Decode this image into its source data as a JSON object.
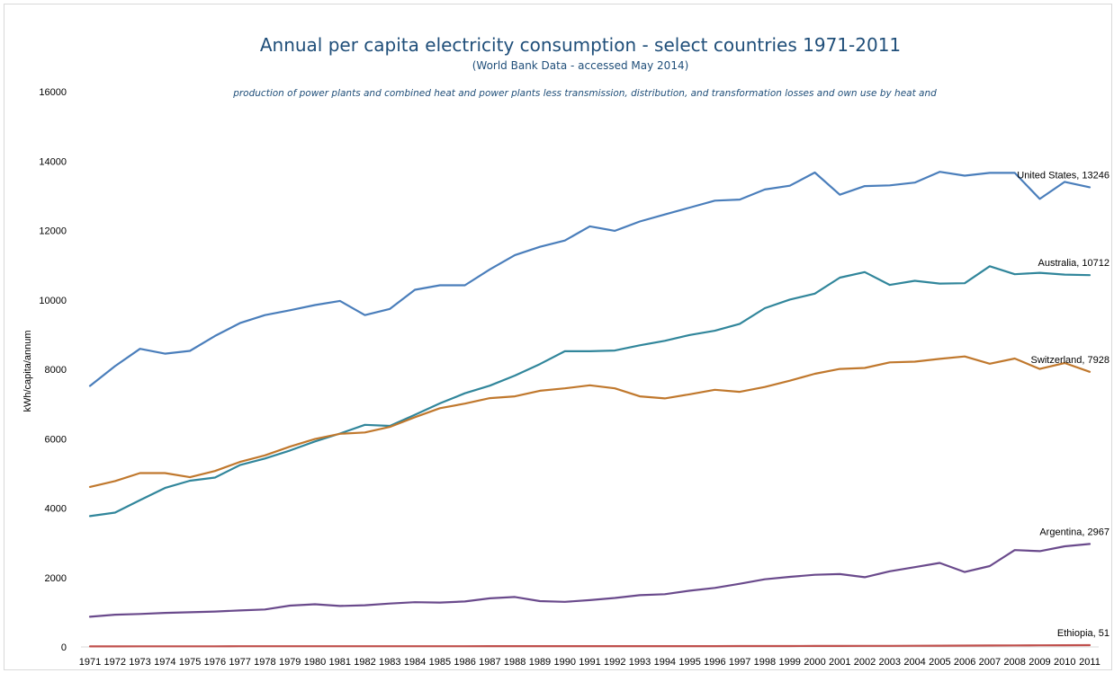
{
  "chart_data": {
    "type": "line",
    "title": "Annual per capita electricity consumption - select countries 1971-2011",
    "subtitle": "(World Bank Data - accessed May 2014)",
    "note": "production of power plants and combined heat and power plants less transmission, distribution, and transformation losses and own use by heat and",
    "xlabel": "",
    "ylabel": "kWh/capita/annum",
    "ylim": [
      0,
      16000
    ],
    "yticks": [
      "0",
      "2000",
      "4000",
      "6000",
      "8000",
      "10000",
      "12000",
      "14000",
      "16000"
    ],
    "categories": [
      "1971",
      "1972",
      "1973",
      "1974",
      "1975",
      "1976",
      "1977",
      "1978",
      "1979",
      "1980",
      "1981",
      "1982",
      "1983",
      "1984",
      "1985",
      "1986",
      "1987",
      "1988",
      "1989",
      "1990",
      "1991",
      "1992",
      "1993",
      "1994",
      "1995",
      "1996",
      "1997",
      "1998",
      "1999",
      "2000",
      "2001",
      "2002",
      "2003",
      "2004",
      "2005",
      "2006",
      "2007",
      "2008",
      "2009",
      "2010",
      "2011"
    ],
    "grid": false,
    "legend": "end-of-line labels",
    "series": [
      {
        "name": "United States",
        "end_label": "United States, 13246",
        "color": "#4a7ebb",
        "values": [
          7520,
          8090,
          8590,
          8450,
          8530,
          8960,
          9330,
          9560,
          9700,
          9850,
          9970,
          9560,
          9740,
          10290,
          10420,
          10420,
          10880,
          11290,
          11530,
          11710,
          12120,
          11990,
          12260,
          12460,
          12660,
          12860,
          12890,
          13180,
          13290,
          13670,
          13030,
          13280,
          13300,
          13380,
          13690,
          13580,
          13660,
          13660,
          12910,
          13400,
          13246
        ]
      },
      {
        "name": "Australia",
        "end_label": "Australia, 10712",
        "color": "#31869b",
        "values": [
          3770,
          3870,
          4230,
          4580,
          4790,
          4880,
          5240,
          5430,
          5660,
          5920,
          6150,
          6400,
          6370,
          6690,
          7020,
          7310,
          7530,
          7820,
          8150,
          8520,
          8520,
          8540,
          8690,
          8820,
          8990,
          9110,
          9310,
          9760,
          10010,
          10180,
          10640,
          10800,
          10430,
          10550,
          10470,
          10480,
          10970,
          10740,
          10780,
          10730,
          10712
        ]
      },
      {
        "name": "Switzerland",
        "end_label": "Switzerland, 7928",
        "color": "#c0782d",
        "values": [
          4610,
          4780,
          5010,
          5010,
          4890,
          5070,
          5330,
          5520,
          5770,
          5990,
          6140,
          6180,
          6340,
          6620,
          6880,
          7010,
          7170,
          7220,
          7380,
          7450,
          7540,
          7450,
          7220,
          7160,
          7280,
          7410,
          7350,
          7490,
          7670,
          7870,
          8010,
          8040,
          8200,
          8220,
          8300,
          8370,
          8160,
          8310,
          8010,
          8180,
          7928
        ]
      },
      {
        "name": "Argentina",
        "end_label": "Argentina, 2967",
        "color": "#6a4a8c",
        "values": [
          870,
          930,
          950,
          980,
          1000,
          1020,
          1050,
          1080,
          1190,
          1230,
          1180,
          1200,
          1250,
          1290,
          1280,
          1310,
          1400,
          1440,
          1320,
          1300,
          1350,
          1410,
          1490,
          1520,
          1620,
          1700,
          1820,
          1950,
          2020,
          2080,
          2100,
          2010,
          2180,
          2300,
          2420,
          2160,
          2330,
          2790,
          2760,
          2900,
          2967
        ]
      },
      {
        "name": "Ethiopia",
        "end_label": "Ethiopia, 51",
        "color": "#c0504d",
        "values": [
          15,
          16,
          17,
          18,
          18,
          19,
          20,
          20,
          20,
          21,
          21,
          21,
          22,
          22,
          22,
          22,
          23,
          23,
          24,
          24,
          24,
          24,
          23,
          23,
          24,
          24,
          25,
          26,
          27,
          28,
          29,
          30,
          31,
          33,
          36,
          38,
          41,
          44,
          46,
          50,
          51
        ]
      }
    ]
  }
}
